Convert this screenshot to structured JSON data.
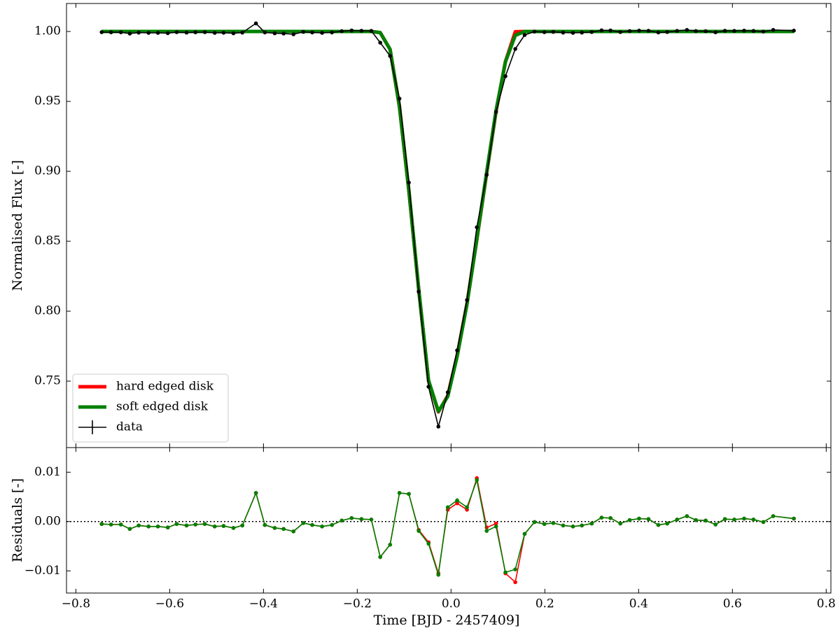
{
  "chart_data": [
    {
      "type": "line",
      "ylabel": "Normalised Flux [-]",
      "x": [
        -0.745,
        -0.725,
        -0.704,
        -0.685,
        -0.666,
        -0.645,
        -0.625,
        -0.604,
        -0.585,
        -0.564,
        -0.545,
        -0.525,
        -0.504,
        -0.485,
        -0.464,
        -0.445,
        -0.416,
        -0.397,
        -0.376,
        -0.357,
        -0.336,
        -0.315,
        -0.296,
        -0.275,
        -0.254,
        -0.233,
        -0.212,
        -0.191,
        -0.17,
        -0.151,
        -0.13,
        -0.11,
        -0.09,
        -0.069,
        -0.048,
        -0.027,
        -0.007,
        0.013,
        0.034,
        0.055,
        0.076,
        0.096,
        0.116,
        0.137,
        0.157,
        0.178,
        0.199,
        0.218,
        0.239,
        0.26,
        0.279,
        0.3,
        0.321,
        0.34,
        0.361,
        0.381,
        0.401,
        0.421,
        0.442,
        0.461,
        0.482,
        0.503,
        0.522,
        0.543,
        0.564,
        0.584,
        0.604,
        0.625,
        0.645,
        0.666,
        0.687,
        0.731
      ],
      "series": [
        {
          "name": "hard edged disk",
          "color": "#ff0000",
          "values": [
            1.0,
            1.0,
            1.0,
            1.0,
            1.0,
            1.0,
            1.0,
            1.0,
            1.0,
            1.0,
            1.0,
            1.0,
            1.0,
            1.0,
            1.0,
            1.0,
            1.0,
            1.0,
            1.0,
            1.0,
            1.0,
            1.0,
            1.0,
            1.0,
            1.0,
            1.0,
            1.0,
            1.0,
            1.0,
            0.9992,
            0.9872,
            0.9462,
            0.8864,
            0.8157,
            0.7502,
            0.728,
            0.7396,
            0.7683,
            0.8056,
            0.8512,
            0.8987,
            0.9429,
            0.9785,
            0.9998,
            1.0,
            1.0,
            1.0,
            1.0,
            1.0,
            1.0,
            1.0,
            1.0,
            1.0,
            1.0,
            1.0,
            1.0,
            1.0,
            1.0,
            1.0,
            1.0,
            1.0,
            1.0,
            1.0,
            1.0,
            1.0,
            1.0,
            1.0,
            1.0,
            1.0,
            1.0,
            1.0,
            1.0
          ]
        },
        {
          "name": "soft edged disk",
          "color": "#008000",
          "values": [
            1.0,
            1.0,
            1.0,
            1.0,
            1.0,
            1.0,
            1.0,
            1.0,
            1.0,
            1.0,
            1.0,
            1.0,
            1.0,
            1.0,
            1.0,
            1.0,
            1.0,
            1.0,
            1.0,
            1.0,
            1.0,
            1.0,
            1.0,
            1.0,
            1.0,
            1.0,
            1.0,
            1.0,
            1.0,
            0.9992,
            0.9872,
            0.9462,
            0.8864,
            0.8159,
            0.7505,
            0.7283,
            0.7391,
            0.7677,
            0.8051,
            0.8516,
            0.8994,
            0.9435,
            0.9783,
            0.9972,
            1.0,
            1.0,
            1.0,
            1.0,
            1.0,
            1.0,
            1.0,
            1.0,
            1.0,
            1.0,
            1.0,
            1.0,
            1.0,
            1.0,
            1.0,
            1.0,
            1.0,
            1.0,
            1.0,
            1.0,
            1.0,
            1.0,
            1.0,
            1.0,
            1.0,
            1.0,
            1.0,
            1.0
          ]
        },
        {
          "name": "data",
          "color": "#000000",
          "marker": "o",
          "values": [
            0.9995,
            0.9994,
            0.9994,
            0.9985,
            0.9992,
            0.999,
            0.999,
            0.9988,
            0.9995,
            0.9992,
            0.9994,
            0.9995,
            0.999,
            0.9991,
            0.9987,
            0.9992,
            1.0058,
            0.9993,
            0.9987,
            0.9985,
            0.998,
            0.9997,
            0.9993,
            0.999,
            0.9993,
            1.0002,
            1.0007,
            1.0005,
            1.0004,
            0.992,
            0.9825,
            0.952,
            0.892,
            0.814,
            0.746,
            0.7175,
            0.742,
            0.772,
            0.808,
            0.86,
            0.8975,
            0.9425,
            0.968,
            0.9875,
            0.9975,
            0.9999,
            0.9995,
            0.9997,
            0.9992,
            0.999,
            0.9992,
            0.9996,
            1.0008,
            1.0007,
            0.9996,
            1.0003,
            1.0006,
            1.0005,
            0.9993,
            0.9996,
            1.0004,
            1.0011,
            1.0003,
            1.0002,
            0.9994,
            1.0005,
            1.0004,
            1.0006,
            1.0004,
            0.9999,
            1.0011,
            1.0006
          ]
        }
      ],
      "xlim": [
        -0.82,
        0.81
      ],
      "ylim": [
        0.7025,
        1.02
      ],
      "yticks": [
        0.75,
        {
          "value": 0.8,
          "label": "0.80"
        },
        0.85,
        {
          "value": 0.9,
          "label": "0.90"
        },
        0.95,
        {
          "value": 1.0,
          "label": "1.00"
        }
      ],
      "legend": "lower left"
    },
    {
      "type": "line",
      "xlabel": "Time [BJD - 2457409]",
      "ylabel": "Residuals [-]",
      "x": [
        -0.745,
        -0.725,
        -0.704,
        -0.685,
        -0.666,
        -0.645,
        -0.625,
        -0.604,
        -0.585,
        -0.564,
        -0.545,
        -0.525,
        -0.504,
        -0.485,
        -0.464,
        -0.445,
        -0.416,
        -0.397,
        -0.376,
        -0.357,
        -0.336,
        -0.315,
        -0.296,
        -0.275,
        -0.254,
        -0.233,
        -0.212,
        -0.191,
        -0.17,
        -0.151,
        -0.13,
        -0.11,
        -0.09,
        -0.069,
        -0.048,
        -0.027,
        -0.007,
        0.013,
        0.034,
        0.055,
        0.076,
        0.096,
        0.116,
        0.137,
        0.157,
        0.178,
        0.199,
        0.218,
        0.239,
        0.26,
        0.279,
        0.3,
        0.321,
        0.34,
        0.361,
        0.381,
        0.401,
        0.421,
        0.442,
        0.461,
        0.482,
        0.503,
        0.522,
        0.543,
        0.564,
        0.584,
        0.604,
        0.625,
        0.645,
        0.666,
        0.687,
        0.731
      ],
      "series": [
        {
          "color": "#ff0000",
          "marker": "o",
          "values": [
            -0.0005,
            -0.0006,
            -0.0006,
            -0.0015,
            -0.0008,
            -0.001,
            -0.001,
            -0.0012,
            -0.0005,
            -0.0008,
            -0.0006,
            -0.0005,
            -0.001,
            -0.0009,
            -0.0013,
            -0.0008,
            0.0058,
            -0.0007,
            -0.0013,
            -0.0015,
            -0.002,
            -0.0003,
            -0.0007,
            -0.001,
            -0.0007,
            0.0002,
            0.0007,
            0.0005,
            0.0004,
            -0.0072,
            -0.0047,
            0.0058,
            0.0056,
            -0.0017,
            -0.0042,
            -0.0105,
            0.0024,
            0.0037,
            0.0024,
            0.0088,
            -0.0012,
            -0.0004,
            -0.0105,
            -0.0123,
            -0.0025,
            -0.0001,
            -0.0005,
            -0.0003,
            -0.0008,
            -0.001,
            -0.0008,
            -0.0004,
            0.0008,
            0.0007,
            -0.0004,
            0.0003,
            0.0006,
            0.0005,
            -0.0007,
            -0.0004,
            0.0004,
            0.0011,
            0.0003,
            0.0002,
            -0.0006,
            0.0005,
            0.0004,
            0.0006,
            0.0004,
            -0.0001,
            0.0011,
            0.0006
          ]
        },
        {
          "color": "#008000",
          "marker": "o",
          "values": [
            -0.0005,
            -0.0006,
            -0.0006,
            -0.0015,
            -0.0008,
            -0.001,
            -0.001,
            -0.0012,
            -0.0005,
            -0.0008,
            -0.0006,
            -0.0005,
            -0.001,
            -0.0009,
            -0.0013,
            -0.0008,
            0.0058,
            -0.0007,
            -0.0013,
            -0.0015,
            -0.002,
            -0.0003,
            -0.0007,
            -0.001,
            -0.0007,
            0.0002,
            0.0007,
            0.0005,
            0.0004,
            -0.0072,
            -0.0047,
            0.0058,
            0.0056,
            -0.0019,
            -0.0045,
            -0.0108,
            0.0029,
            0.0043,
            0.0029,
            0.0084,
            -0.0019,
            -0.001,
            -0.0103,
            -0.0097,
            -0.0025,
            -0.0001,
            -0.0005,
            -0.0003,
            -0.0008,
            -0.001,
            -0.0008,
            -0.0004,
            0.0008,
            0.0007,
            -0.0004,
            0.0003,
            0.0006,
            0.0005,
            -0.0007,
            -0.0004,
            0.0004,
            0.0011,
            0.0003,
            0.0002,
            -0.0006,
            0.0005,
            0.0004,
            0.0006,
            0.0004,
            -0.0001,
            0.0011,
            0.0006
          ]
        }
      ],
      "hline": 0,
      "xlim": [
        -0.82,
        0.81
      ],
      "ylim": [
        -0.0145,
        0.015
      ],
      "xticks": [
        {
          "value": -0.8,
          "label": "−0.8"
        },
        {
          "value": -0.6,
          "label": "−0.6"
        },
        {
          "value": -0.4,
          "label": "−0.4"
        },
        {
          "value": -0.2,
          "label": "−0.2"
        },
        {
          "value": 0.0,
          "label": "0.0"
        },
        0.2,
        0.4,
        0.6,
        0.8
      ],
      "yticks": [
        {
          "value": -0.01,
          "label": "−0.01"
        },
        {
          "value": 0,
          "label": "0.00"
        },
        0.01
      ]
    }
  ]
}
